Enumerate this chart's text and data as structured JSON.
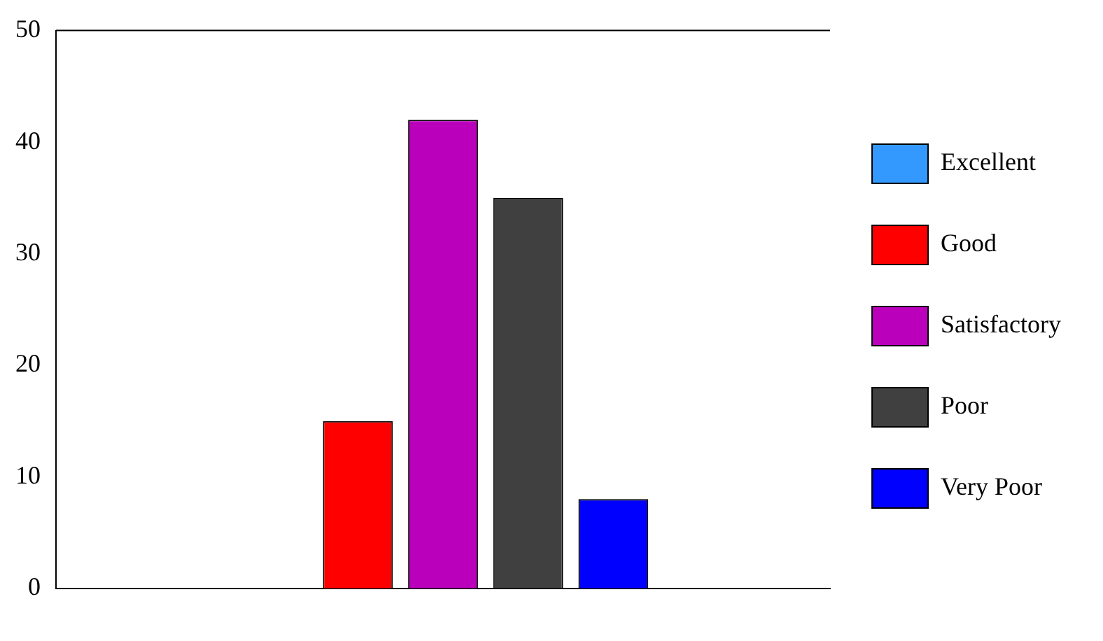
{
  "chart_data": {
    "type": "bar",
    "categories": [
      null
    ],
    "series": [
      {
        "name": "Excellent",
        "color": "#3399ff",
        "values": [
          0
        ]
      },
      {
        "name": "Good",
        "color": "#ff0000",
        "values": [
          15
        ]
      },
      {
        "name": "Satisfactory",
        "color": "#bb00bb",
        "values": [
          42
        ]
      },
      {
        "name": "Poor",
        "color": "#404040",
        "values": [
          35
        ]
      },
      {
        "name": "Very Poor",
        "color": "#0000ff",
        "values": [
          8
        ]
      }
    ],
    "ylim": [
      0,
      50
    ],
    "yticks": [
      0,
      10,
      20,
      30,
      40,
      50
    ],
    "grid": false,
    "legend": "right"
  }
}
